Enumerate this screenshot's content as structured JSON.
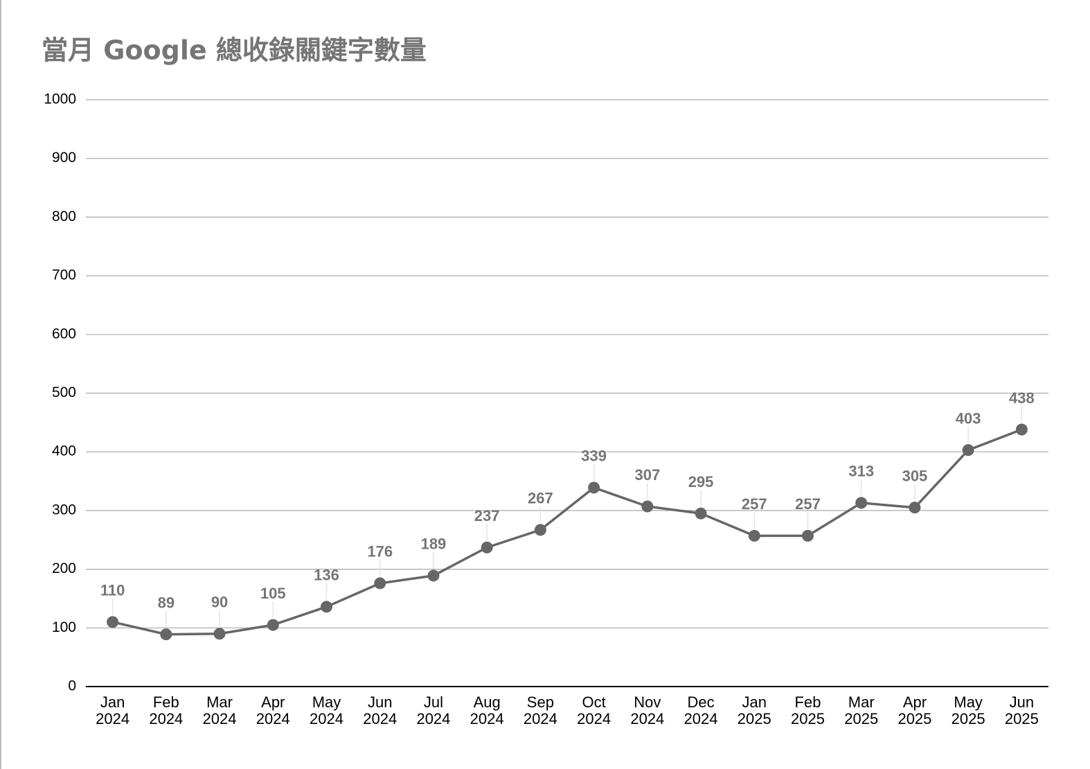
{
  "chart_data": {
    "type": "line",
    "title": "當月 Google 總收錄關鍵字數量",
    "categories": [
      "Jan 2024",
      "Feb 2024",
      "Mar 2024",
      "Apr 2024",
      "May 2024",
      "Jun 2024",
      "Jul 2024",
      "Aug 2024",
      "Sep 2024",
      "Oct 2024",
      "Nov 2024",
      "Dec 2024",
      "Jan 2025",
      "Feb 2025",
      "Mar 2025",
      "Apr 2025",
      "May 2025",
      "Jun 2025"
    ],
    "values": [
      110,
      89,
      90,
      105,
      136,
      176,
      189,
      237,
      267,
      339,
      307,
      295,
      257,
      257,
      313,
      305,
      403,
      438
    ],
    "color": "#666666",
    "ylim": [
      0,
      1000
    ],
    "yticks": [
      0,
      100,
      200,
      300,
      400,
      500,
      600,
      700,
      800,
      900,
      1000
    ],
    "grid": true
  }
}
